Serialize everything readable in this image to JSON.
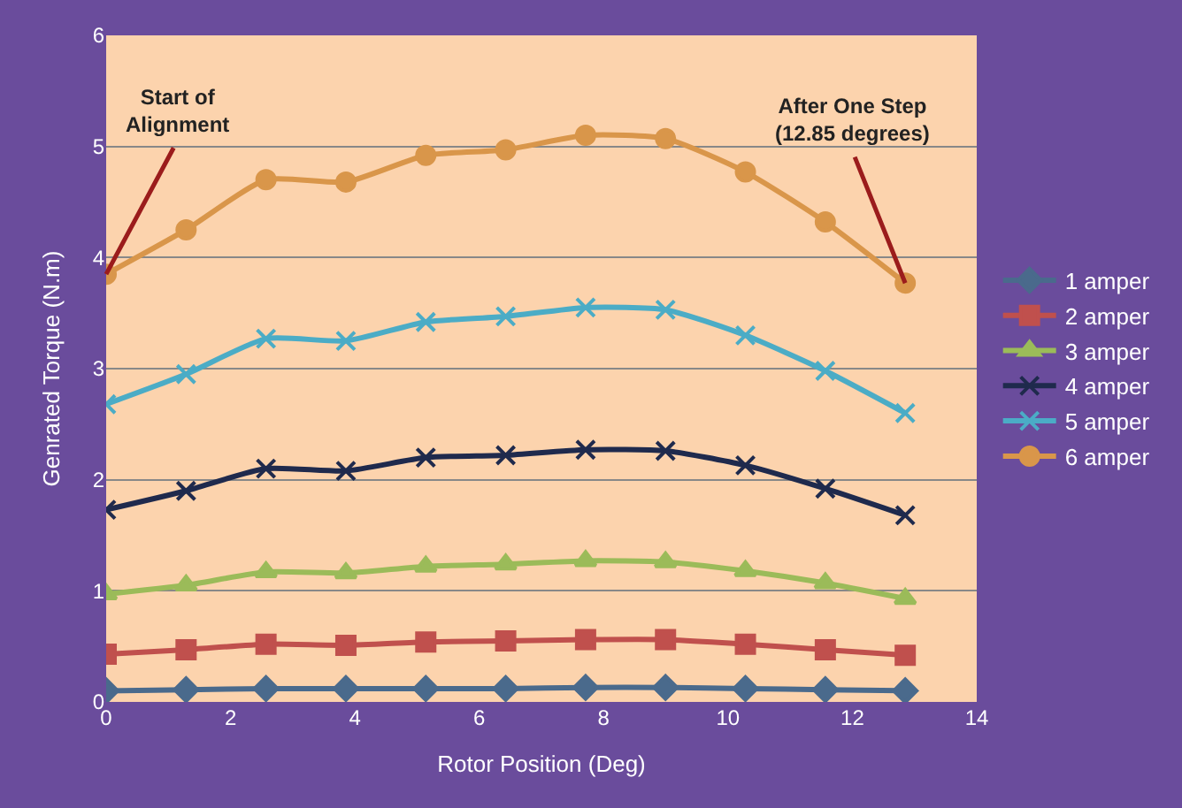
{
  "chart_data": {
    "type": "line",
    "xlabel": "Rotor Position (Deg)",
    "ylabel": "Genrated Torque (N.m)",
    "x": [
      0,
      1.285,
      2.57,
      3.855,
      5.14,
      6.425,
      7.71,
      8.995,
      10.28,
      11.565,
      12.85
    ],
    "xlim": [
      0,
      14
    ],
    "xticks": [
      0,
      2,
      4,
      6,
      8,
      10,
      12,
      14
    ],
    "ylim": [
      0,
      6
    ],
    "yticks": [
      0,
      1,
      2,
      3,
      4,
      5,
      6
    ],
    "grid": "y",
    "legend": "right",
    "series": [
      {
        "name": "1 amper",
        "color": "#4a6a8c",
        "marker": "diamond",
        "values": [
          0.1,
          0.11,
          0.12,
          0.12,
          0.12,
          0.12,
          0.13,
          0.13,
          0.12,
          0.11,
          0.1
        ]
      },
      {
        "name": "2 amper",
        "color": "#c0504d",
        "marker": "square",
        "values": [
          0.43,
          0.47,
          0.52,
          0.51,
          0.54,
          0.55,
          0.56,
          0.56,
          0.52,
          0.47,
          0.42
        ]
      },
      {
        "name": "3 amper",
        "color": "#9bbb59",
        "marker": "triangle",
        "values": [
          0.97,
          1.05,
          1.17,
          1.16,
          1.22,
          1.24,
          1.27,
          1.26,
          1.18,
          1.07,
          0.93
        ]
      },
      {
        "name": "4 amper",
        "color": "#1f2a4d",
        "marker": "cross",
        "values": [
          1.73,
          1.9,
          2.1,
          2.08,
          2.2,
          2.22,
          2.27,
          2.26,
          2.13,
          1.92,
          1.68
        ]
      },
      {
        "name": "5 amper",
        "color": "#4bacc6",
        "marker": "cross",
        "values": [
          2.68,
          2.95,
          3.27,
          3.25,
          3.42,
          3.47,
          3.55,
          3.53,
          3.3,
          2.98,
          2.6
        ]
      },
      {
        "name": "6 amper",
        "color": "#d9964a",
        "marker": "circle",
        "values": [
          3.85,
          4.25,
          4.7,
          4.68,
          4.92,
          4.97,
          5.1,
          5.07,
          4.77,
          4.32,
          3.77
        ]
      }
    ],
    "annotations": [
      {
        "text": "Start of\nAlignment",
        "x": 0,
        "y": 3.85
      },
      {
        "text": "After One Step\n(12.85 degrees)",
        "x": 12.85,
        "y": 3.77
      }
    ]
  }
}
